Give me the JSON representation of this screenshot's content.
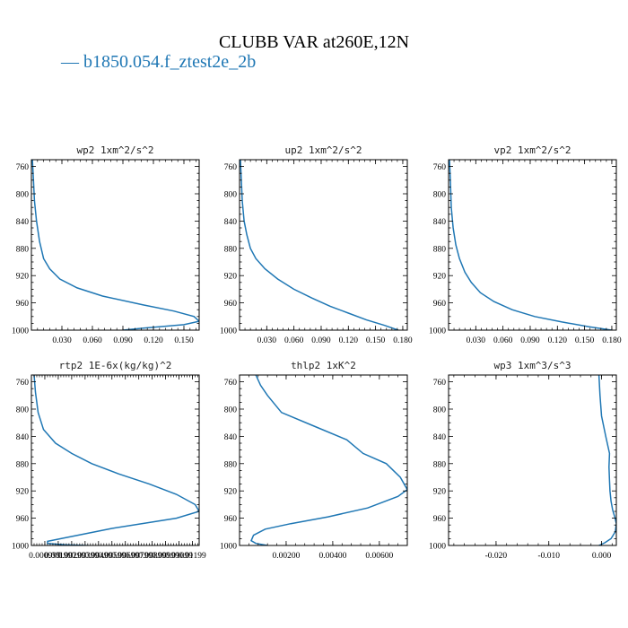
{
  "figure": {
    "title": "CLUBB VAR at260E,12N",
    "legend": [
      {
        "label": "— b1850.054.f_ztest2e_2b",
        "color": "#1f77b4"
      }
    ]
  },
  "chart_data": [
    {
      "type": "line",
      "title": "wp2  1xm^2/s^2",
      "xlim": [
        0.0,
        0.165
      ],
      "ylim": [
        1000,
        750
      ],
      "y_inverted": true,
      "xticks": [
        0.03,
        0.06,
        0.09,
        0.12,
        0.15
      ],
      "xtick_labels": [
        "0.030",
        "0.060",
        "0.090",
        "0.120",
        "0.150"
      ],
      "yticks": [
        760,
        800,
        840,
        880,
        920,
        960,
        1000
      ],
      "series": [
        {
          "color": "#1f77b4",
          "x": [
            0.001,
            0.002,
            0.003,
            0.005,
            0.008,
            0.012,
            0.018,
            0.028,
            0.045,
            0.07,
            0.11,
            0.14,
            0.16,
            0.165,
            0.15,
            0.11,
            0.09
          ],
          "y": [
            750,
            780,
            810,
            840,
            870,
            895,
            910,
            925,
            938,
            950,
            963,
            972,
            980,
            987,
            992,
            997,
            1000
          ]
        }
      ]
    },
    {
      "type": "line",
      "title": "up2  1xm^2/s^2",
      "xlim": [
        0.0,
        0.185
      ],
      "ylim": [
        1000,
        750
      ],
      "y_inverted": true,
      "xticks": [
        0.03,
        0.06,
        0.09,
        0.12,
        0.15,
        0.18
      ],
      "xtick_labels": [
        "0.030",
        "0.060",
        "0.090",
        "0.120",
        "0.150",
        "0.180"
      ],
      "yticks": [
        760,
        800,
        840,
        880,
        920,
        960,
        1000
      ],
      "series": [
        {
          "color": "#1f77b4",
          "x": [
            0.001,
            0.002,
            0.003,
            0.005,
            0.008,
            0.012,
            0.018,
            0.028,
            0.042,
            0.06,
            0.08,
            0.1,
            0.12,
            0.14,
            0.16,
            0.175
          ],
          "y": [
            750,
            780,
            810,
            840,
            860,
            880,
            895,
            910,
            925,
            940,
            953,
            965,
            975,
            985,
            993,
            1000
          ]
        }
      ]
    },
    {
      "type": "line",
      "title": "vp2  1xm^2/s^2",
      "xlim": [
        0.0,
        0.185
      ],
      "ylim": [
        1000,
        750
      ],
      "y_inverted": true,
      "xticks": [
        0.03,
        0.06,
        0.09,
        0.12,
        0.15,
        0.18
      ],
      "xtick_labels": [
        "0.030",
        "0.060",
        "0.090",
        "0.120",
        "0.150",
        "0.180"
      ],
      "yticks": [
        760,
        800,
        840,
        880,
        920,
        960,
        1000
      ],
      "series": [
        {
          "color": "#1f77b4",
          "x": [
            0.001,
            0.002,
            0.003,
            0.005,
            0.008,
            0.012,
            0.018,
            0.025,
            0.035,
            0.05,
            0.07,
            0.095,
            0.125,
            0.155,
            0.18
          ],
          "y": [
            750,
            780,
            820,
            850,
            875,
            895,
            915,
            930,
            945,
            958,
            970,
            980,
            988,
            995,
            1000
          ]
        }
      ]
    },
    {
      "type": "line",
      "title": "rtp2  1E-6x(kg/kg)^2",
      "xlim": [
        0.0,
        0.0125
      ],
      "ylim": [
        1000,
        750
      ],
      "y_inverted": true,
      "xticks": [
        0.001,
        0.002,
        0.003,
        0.004,
        0.005,
        0.006,
        0.007,
        0.008,
        0.009,
        0.01,
        0.011,
        0.012
      ],
      "xtick_labels": [
        "0.000999",
        "0.00199",
        "0.00299",
        "0.00399",
        "0.00499",
        "0.00599",
        "0.00699",
        "0.00799",
        "0.00899",
        "0.00999",
        "0.01099",
        "0.01199"
      ],
      "yticks": [
        760,
        800,
        840,
        880,
        920,
        960,
        1000
      ],
      "series": [
        {
          "color": "#1f77b4",
          "x": [
            0.0002,
            0.0003,
            0.0005,
            0.0009,
            0.0018,
            0.003,
            0.0045,
            0.0065,
            0.0088,
            0.0108,
            0.0122,
            0.0125,
            0.0108,
            0.006,
            0.0022,
            0.0012,
            0.0012,
            0.0025,
            0.004,
            0.006
          ],
          "y": [
            750,
            775,
            805,
            830,
            850,
            865,
            880,
            895,
            910,
            925,
            940,
            950,
            960,
            975,
            990,
            994,
            997,
            999,
            1000,
            1002
          ]
        }
      ]
    },
    {
      "type": "line",
      "title": "thlp2  1xK^2",
      "xlim": [
        0.0,
        0.0072
      ],
      "ylim": [
        1000,
        750
      ],
      "y_inverted": true,
      "xticks": [
        0.002,
        0.004,
        0.006
      ],
      "xtick_labels": [
        "0.00200",
        "0.00400",
        "0.00600"
      ],
      "yticks": [
        760,
        800,
        840,
        880,
        920,
        960,
        1000
      ],
      "series": [
        {
          "color": "#1f77b4",
          "x": [
            0.0007,
            0.0009,
            0.0012,
            0.0018,
            0.0032,
            0.0046,
            0.0053,
            0.0063,
            0.0069,
            0.0072,
            0.0068,
            0.0055,
            0.0038,
            0.0022,
            0.0011,
            0.0006,
            0.0005,
            0.0007,
            0.0012
          ],
          "y": [
            750,
            765,
            780,
            805,
            825,
            845,
            865,
            880,
            900,
            918,
            928,
            945,
            958,
            968,
            976,
            985,
            993,
            997,
            1000
          ]
        }
      ]
    },
    {
      "type": "line",
      "title": "wp3  1xm^3/s^3",
      "xlim": [
        -0.029,
        0.0028
      ],
      "ylim": [
        1000,
        750
      ],
      "y_inverted": true,
      "xticks": [
        -0.02,
        -0.01,
        0.0
      ],
      "xtick_labels": [
        "-0.020",
        "-0.010",
        "0.000"
      ],
      "yticks": [
        760,
        800,
        840,
        880,
        920,
        960,
        1000
      ],
      "series": [
        {
          "color": "#1f77b4",
          "x": [
            -0.0005,
            -0.0003,
            0.0,
            0.0008,
            0.0015,
            0.0014,
            0.0015,
            0.0016,
            0.0018,
            0.0021,
            0.0025,
            0.0028,
            0.0026,
            0.0018,
            0.0006,
            -0.0005
          ],
          "y": [
            750,
            780,
            810,
            840,
            865,
            885,
            905,
            920,
            935,
            948,
            958,
            968,
            980,
            990,
            996,
            1000
          ]
        }
      ]
    }
  ]
}
